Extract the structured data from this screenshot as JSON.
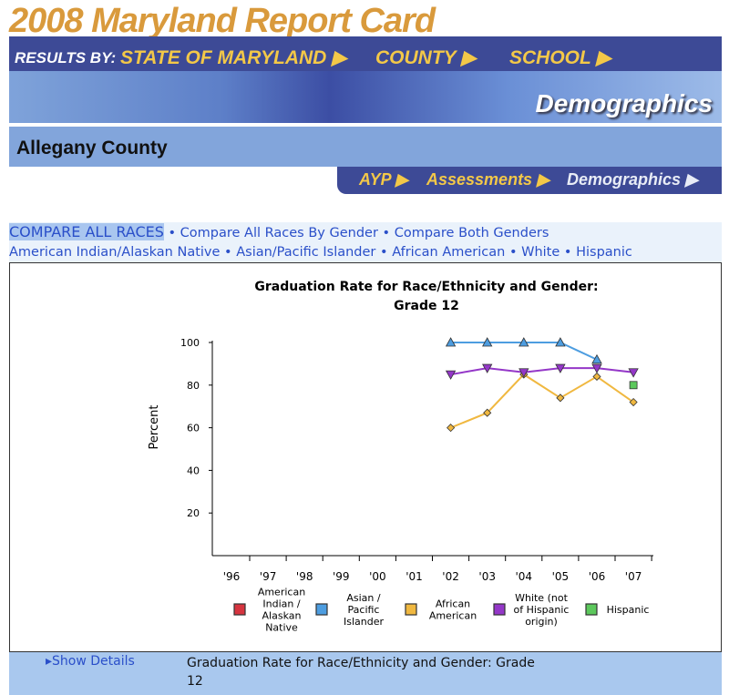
{
  "header": {
    "title": "2008 Maryland Report Card",
    "results_by": "RESULTS BY:",
    "nav": [
      "STATE OF MARYLAND ▶",
      "COUNTY ▶",
      "SCHOOL ▶"
    ],
    "section": "Demographics"
  },
  "county": "Allegany County",
  "subnav": [
    "AYP ▶",
    "Assessments ▶",
    "Demographics ▶"
  ],
  "links": {
    "row1": [
      "COMPARE ALL RACES",
      "Compare All Races By Gender",
      "Compare Both Genders"
    ],
    "row2": [
      "American Indian/Alaskan Native",
      "Asian/Pacific Islander",
      "African American",
      "White",
      "Hispanic"
    ],
    "sep": " • "
  },
  "footer": {
    "show_details": "▸Show Details",
    "title": "Graduation Rate for Race/Ethnicity and Gender: Grade 12"
  },
  "chart_data": {
    "type": "line",
    "title": [
      "Graduation Rate for Race/Ethnicity and Gender:",
      "Grade 12"
    ],
    "ylabel": "Percent",
    "xlabel": "",
    "ylim": [
      0,
      100
    ],
    "yticks": [
      20,
      40,
      60,
      80,
      100
    ],
    "categories": [
      "'96",
      "'97",
      "'98",
      "'99",
      "'00",
      "'01",
      "'02",
      "'03",
      "'04",
      "'05",
      "'06",
      "'07"
    ],
    "legend_position": "bottom",
    "series": [
      {
        "name": "American Indian / Alaskan Native",
        "color": "#d6343f",
        "marker": "square",
        "values": [
          null,
          null,
          null,
          null,
          null,
          null,
          null,
          null,
          null,
          null,
          null,
          null
        ]
      },
      {
        "name": "Asian / Pacific Islander",
        "color": "#4d9de0",
        "marker": "triangle",
        "values": [
          null,
          null,
          null,
          null,
          null,
          null,
          100,
          100,
          100,
          100,
          92,
          null
        ]
      },
      {
        "name": "African American",
        "color": "#f0b840",
        "marker": "diamond",
        "values": [
          null,
          null,
          null,
          null,
          null,
          null,
          60,
          67,
          85,
          74,
          84,
          72
        ]
      },
      {
        "name": "White (not of Hispanic origin)",
        "color": "#9437c8",
        "marker": "triangle-down",
        "values": [
          null,
          null,
          null,
          null,
          null,
          null,
          85,
          88,
          86,
          88,
          88,
          86
        ]
      },
      {
        "name": "Hispanic",
        "color": "#5cc85c",
        "marker": "square",
        "values": [
          null,
          null,
          null,
          null,
          null,
          null,
          null,
          null,
          null,
          null,
          null,
          80
        ]
      }
    ]
  }
}
